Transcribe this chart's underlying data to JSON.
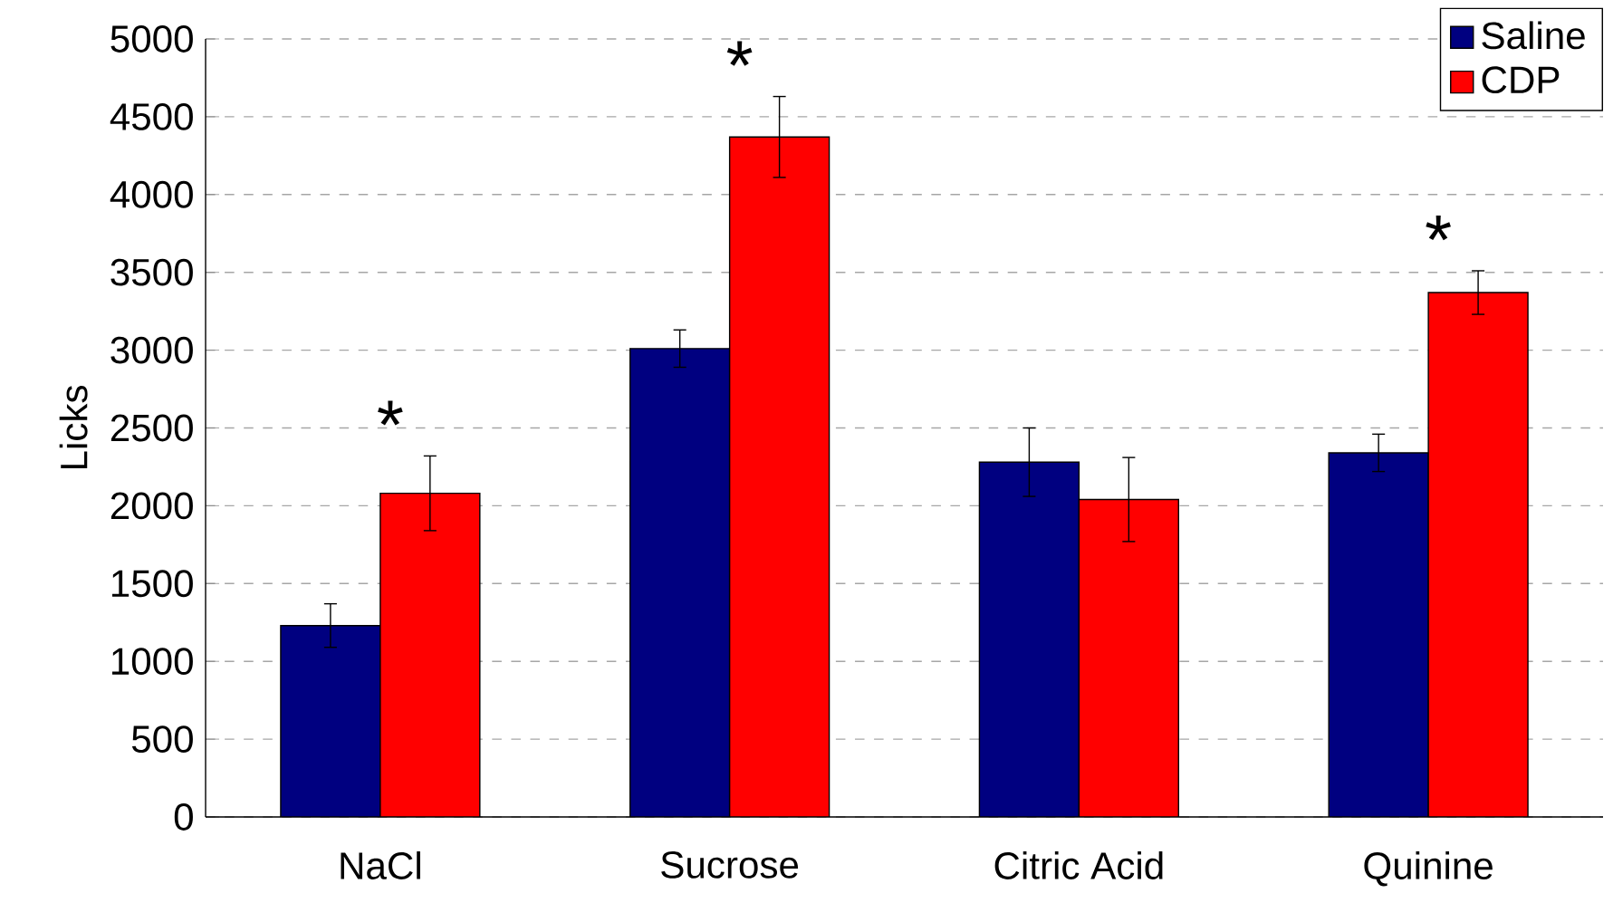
{
  "chart_data": {
    "type": "bar",
    "ylabel": "Licks",
    "categories": [
      "NaCl",
      "Sucrose",
      "Citric Acid",
      "Quinine"
    ],
    "series": [
      {
        "name": "Saline",
        "color": "#000080",
        "values": [
          1230,
          3010,
          2280,
          2340
        ],
        "errors": [
          140,
          120,
          220,
          120
        ]
      },
      {
        "name": "CDP",
        "color": "#ff0000",
        "values": [
          2080,
          4370,
          2040,
          3370
        ],
        "errors": [
          240,
          260,
          270,
          140
        ]
      }
    ],
    "ylim": [
      0,
      5000
    ],
    "yticks": [
      0,
      500,
      1000,
      1500,
      2000,
      2500,
      3000,
      3500,
      4000,
      4500,
      5000
    ],
    "grid": "y",
    "legend": "top right",
    "annotations": [
      {
        "text": "*",
        "x": "NaCl",
        "y": 2080
      },
      {
        "text": "*",
        "x": "Sucrose",
        "y": 4370
      },
      {
        "text": "*",
        "x": "Quinine",
        "y": 3370
      }
    ]
  }
}
